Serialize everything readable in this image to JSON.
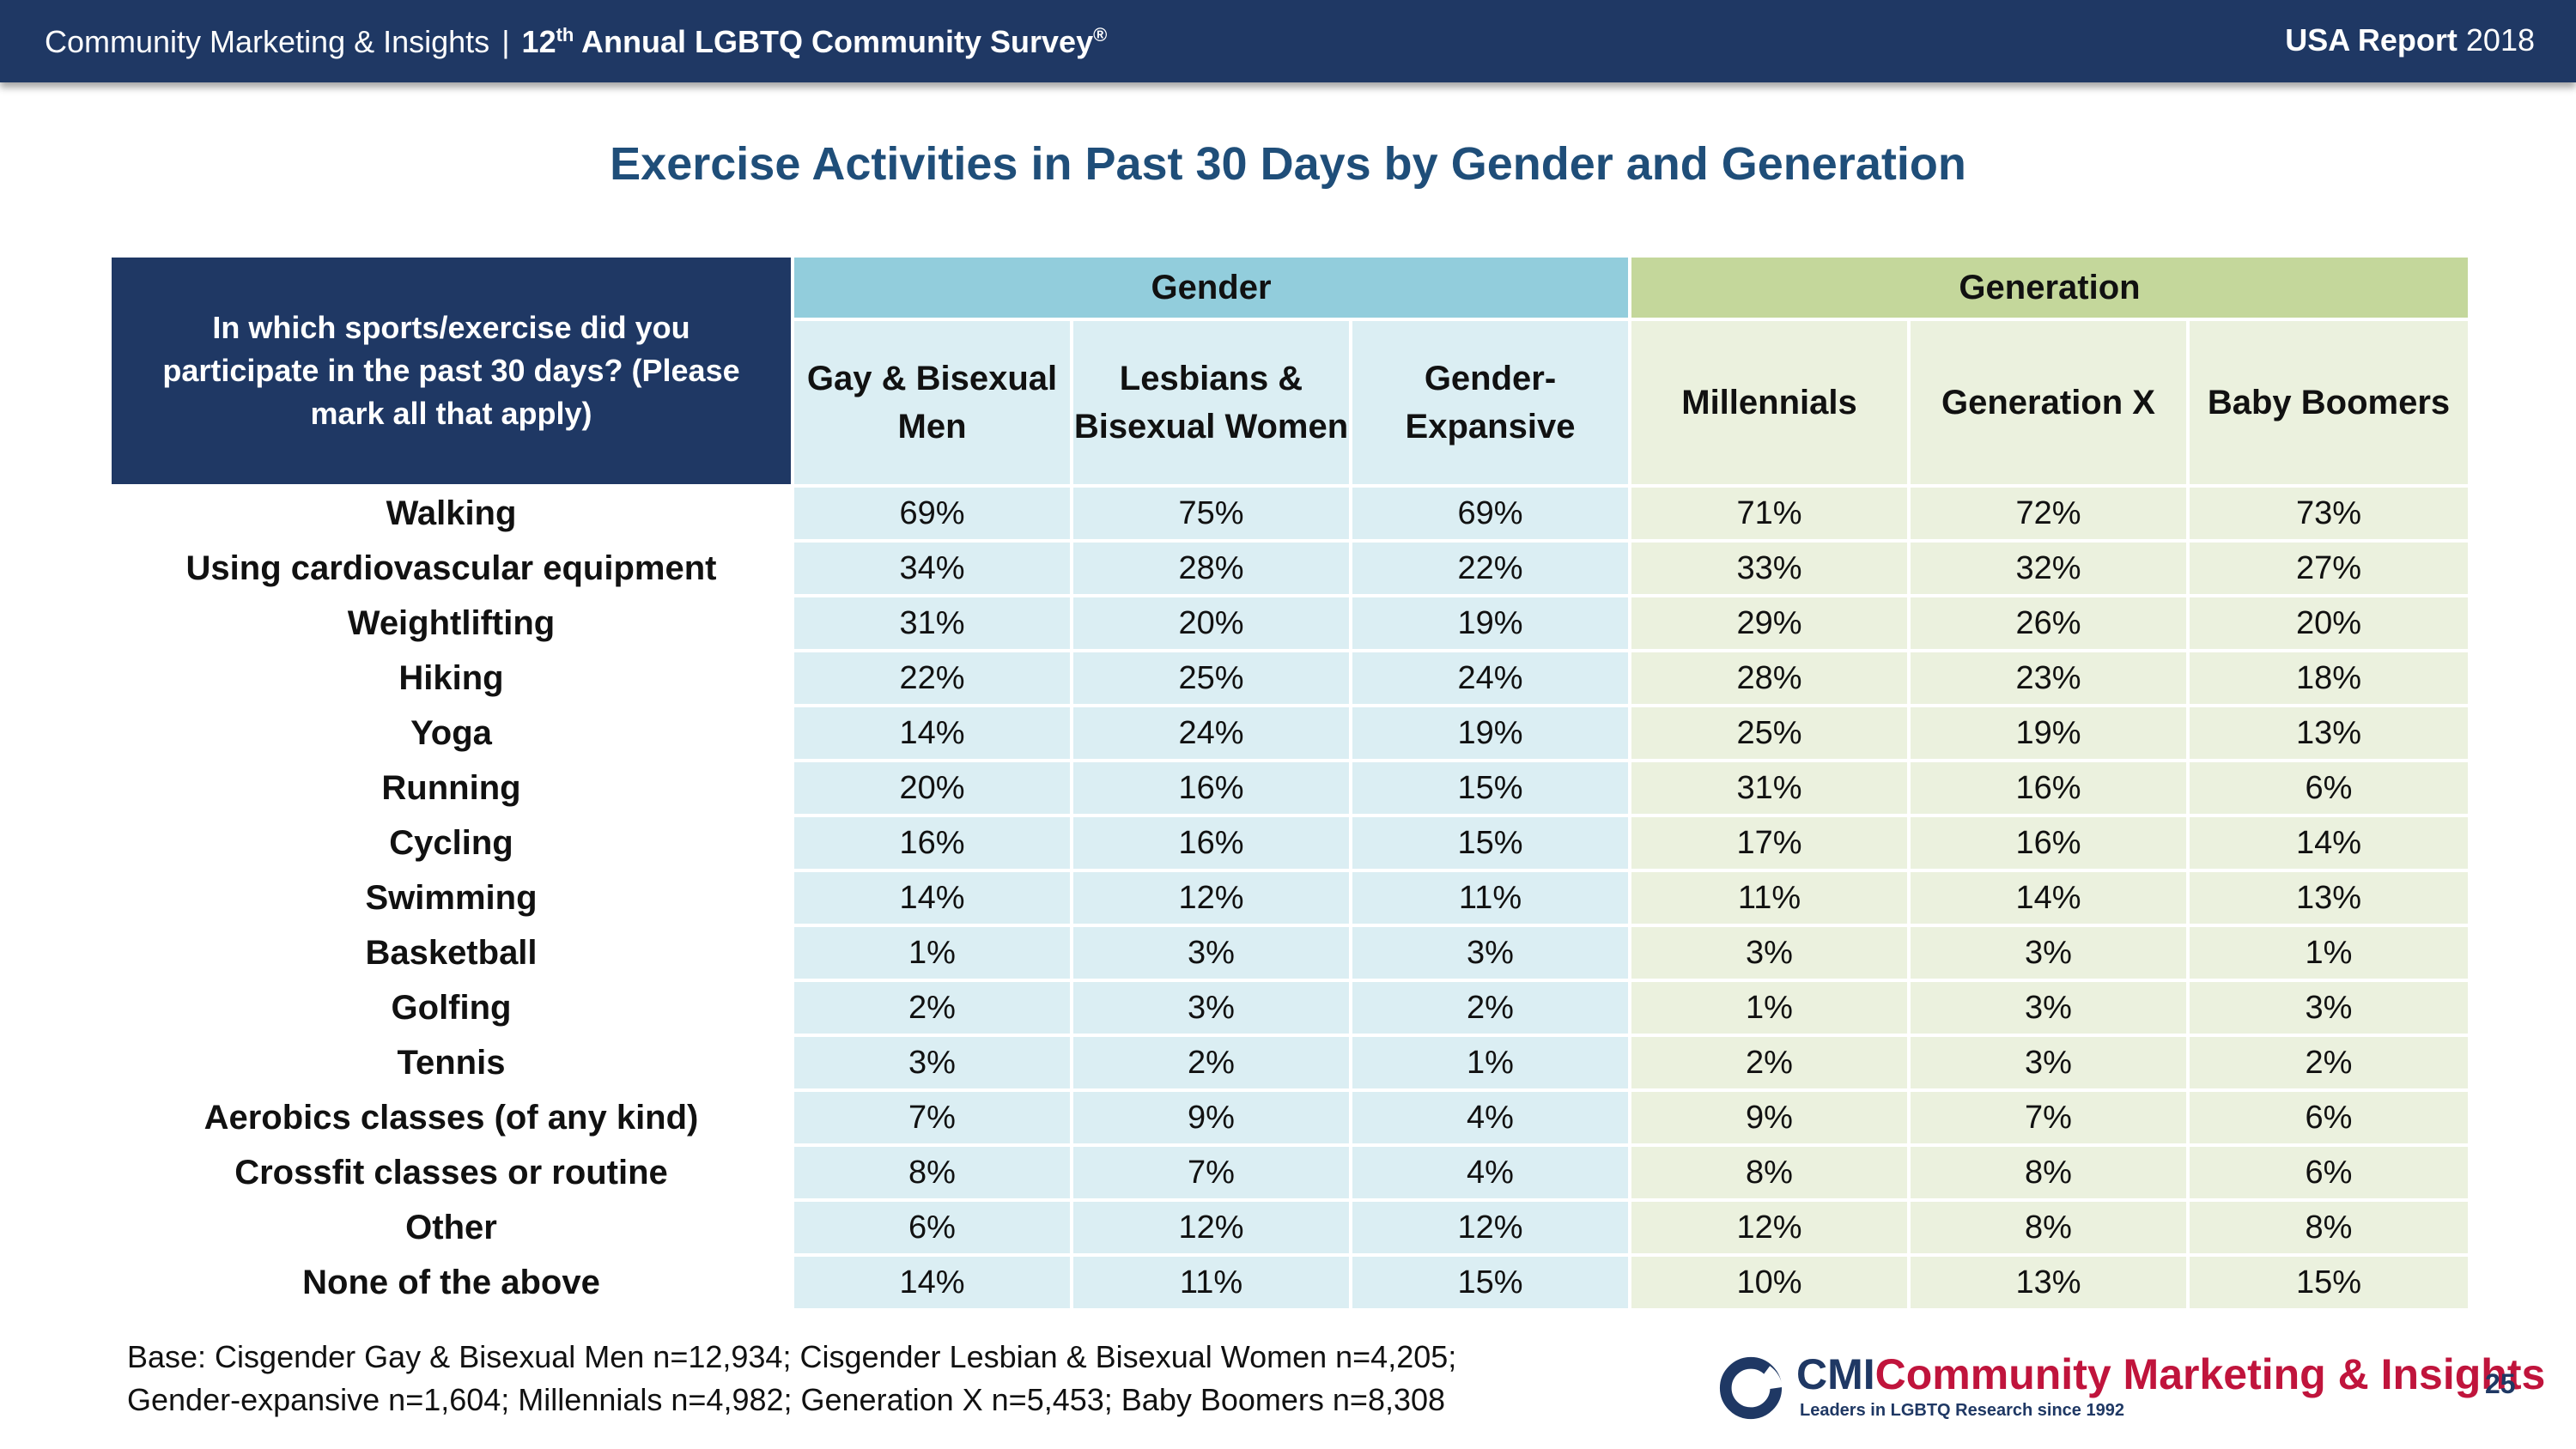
{
  "header": {
    "org": "Community Marketing & Insights",
    "separator": "|",
    "survey_num": "12",
    "survey_sup": "th",
    "survey_title": "Annual LGBTQ Community Survey",
    "registered": "®",
    "report_label": "USA Report",
    "report_year": "2018"
  },
  "title": "Exercise Activities in Past 30 Days by Gender and Generation",
  "table": {
    "question": "In which sports/exercise did you participate in the past 30 days? (Please mark all that apply)",
    "groups": {
      "gender": "Gender",
      "generation": "Generation"
    },
    "columns": [
      "Gay & Bisexual Men",
      "Lesbians & Bisexual Women",
      "Gender-Expansive",
      "Millennials",
      "Generation X",
      "Baby Boomers"
    ],
    "rows": [
      {
        "label": "Walking",
        "values": [
          "69%",
          "75%",
          "69%",
          "71%",
          "72%",
          "73%"
        ]
      },
      {
        "label": "Using cardiovascular equipment",
        "values": [
          "34%",
          "28%",
          "22%",
          "33%",
          "32%",
          "27%"
        ]
      },
      {
        "label": "Weightlifting",
        "values": [
          "31%",
          "20%",
          "19%",
          "29%",
          "26%",
          "20%"
        ]
      },
      {
        "label": "Hiking",
        "values": [
          "22%",
          "25%",
          "24%",
          "28%",
          "23%",
          "18%"
        ]
      },
      {
        "label": "Yoga",
        "values": [
          "14%",
          "24%",
          "19%",
          "25%",
          "19%",
          "13%"
        ]
      },
      {
        "label": "Running",
        "values": [
          "20%",
          "16%",
          "15%",
          "31%",
          "16%",
          "6%"
        ]
      },
      {
        "label": "Cycling",
        "values": [
          "16%",
          "16%",
          "15%",
          "17%",
          "16%",
          "14%"
        ]
      },
      {
        "label": "Swimming",
        "values": [
          "14%",
          "12%",
          "11%",
          "11%",
          "14%",
          "13%"
        ]
      },
      {
        "label": "Basketball",
        "values": [
          "1%",
          "3%",
          "3%",
          "3%",
          "3%",
          "1%"
        ]
      },
      {
        "label": "Golfing",
        "values": [
          "2%",
          "3%",
          "2%",
          "1%",
          "3%",
          "3%"
        ]
      },
      {
        "label": "Tennis",
        "values": [
          "3%",
          "2%",
          "1%",
          "2%",
          "3%",
          "2%"
        ]
      },
      {
        "label": "Aerobics classes (of any kind)",
        "values": [
          "7%",
          "9%",
          "4%",
          "9%",
          "7%",
          "6%"
        ]
      },
      {
        "label": "Crossfit classes or routine",
        "values": [
          "8%",
          "7%",
          "4%",
          "8%",
          "8%",
          "6%"
        ]
      },
      {
        "label": "Other",
        "values": [
          "6%",
          "12%",
          "12%",
          "12%",
          "8%",
          "8%"
        ]
      },
      {
        "label": "None of the above",
        "values": [
          "14%",
          "11%",
          "15%",
          "10%",
          "13%",
          "15%"
        ]
      }
    ]
  },
  "base_note": {
    "line1": "Base: Cisgender Gay & Bisexual Men n=12,934; Cisgender Lesbian & Bisexual Women n=4,205;",
    "line2": "Gender-expansive n=1,604; Millennials n=4,982; Generation X n=5,453; Baby Boomers n=8,308"
  },
  "logo": {
    "abbr": "CMI",
    "name": "Community Marketing & Insights",
    "tagline": "Leaders in LGBTQ Research since 1992"
  },
  "page_number": "25",
  "colors": {
    "navy": "#1f3864",
    "title_blue": "#1f4e79",
    "gender_header": "#92cddc",
    "gender_cell": "#dbeef3",
    "generation_header": "#c4d79b",
    "generation_cell": "#ebf1de",
    "logo_red": "#c0143c"
  }
}
